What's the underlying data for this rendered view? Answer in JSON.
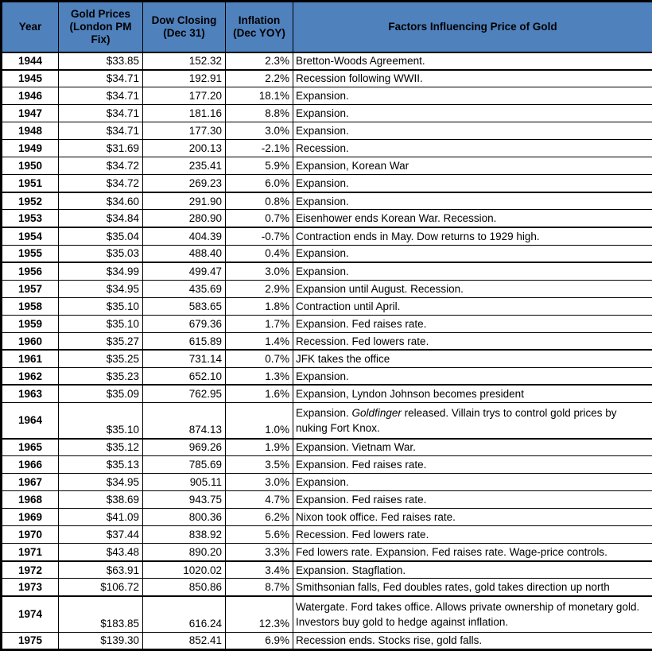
{
  "style": {
    "header_bg": "#4f81bd",
    "header_text_color": "#000000",
    "border_color": "#000000",
    "body_bg": "#ffffff",
    "thick_top_rows": [
      "1945",
      "1952",
      "1954",
      "1956",
      "1961",
      "1963",
      "1965",
      "1972",
      "1974"
    ]
  },
  "chart_data": {
    "type": "table",
    "title": "",
    "columns": [
      "Year",
      "Gold Prices (London PM Fix)",
      "Dow Closing (Dec 31)",
      "Inflation (Dec YOY)",
      "Factors Influencing Price of Gold"
    ],
    "rows": [
      {
        "year": "1944",
        "gold_price": "$33.85",
        "dow_close": "152.32",
        "inflation": "2.3%",
        "factors": "Bretton-Woods Agreement."
      },
      {
        "year": "1945",
        "gold_price": "$34.71",
        "dow_close": "192.91",
        "inflation": "2.2%",
        "factors": "Recession following WWII."
      },
      {
        "year": "1946",
        "gold_price": "$34.71",
        "dow_close": "177.20",
        "inflation": "18.1%",
        "factors": "Expansion."
      },
      {
        "year": "1947",
        "gold_price": "$34.71",
        "dow_close": "181.16",
        "inflation": "8.8%",
        "factors": "Expansion."
      },
      {
        "year": "1948",
        "gold_price": "$34.71",
        "dow_close": "177.30",
        "inflation": "3.0%",
        "factors": "Expansion."
      },
      {
        "year": "1949",
        "gold_price": "$31.69",
        "dow_close": "200.13",
        "inflation": "-2.1%",
        "factors": "Recession."
      },
      {
        "year": "1950",
        "gold_price": "$34.72",
        "dow_close": "235.41",
        "inflation": "5.9%",
        "factors": "Expansion, Korean War"
      },
      {
        "year": "1951",
        "gold_price": "$34.72",
        "dow_close": "269.23",
        "inflation": "6.0%",
        "factors": "Expansion."
      },
      {
        "year": "1952",
        "gold_price": "$34.60",
        "dow_close": "291.90",
        "inflation": "0.8%",
        "factors": "Expansion."
      },
      {
        "year": "1953",
        "gold_price": "$34.84",
        "dow_close": "280.90",
        "inflation": "0.7%",
        "factors": "Eisenhower ends Korean War. Recession."
      },
      {
        "year": "1954",
        "gold_price": "$35.04",
        "dow_close": "404.39",
        "inflation": "-0.7%",
        "factors": "Contraction ends in May. Dow returns to 1929 high."
      },
      {
        "year": "1955",
        "gold_price": "$35.03",
        "dow_close": "488.40",
        "inflation": "0.4%",
        "factors": "Expansion."
      },
      {
        "year": "1956",
        "gold_price": "$34.99",
        "dow_close": "499.47",
        "inflation": "3.0%",
        "factors": "Expansion."
      },
      {
        "year": "1957",
        "gold_price": "$34.95",
        "dow_close": "435.69",
        "inflation": "2.9%",
        "factors": "Expansion until August. Recession."
      },
      {
        "year": "1958",
        "gold_price": "$35.10",
        "dow_close": "583.65",
        "inflation": "1.8%",
        "factors": "Contraction until April."
      },
      {
        "year": "1959",
        "gold_price": "$35.10",
        "dow_close": "679.36",
        "inflation": "1.7%",
        "factors": "Expansion. Fed raises rate."
      },
      {
        "year": "1960",
        "gold_price": "$35.27",
        "dow_close": "615.89",
        "inflation": "1.4%",
        "factors": "Recession. Fed lowers rate."
      },
      {
        "year": "1961",
        "gold_price": "$35.25",
        "dow_close": "731.14",
        "inflation": "0.7%",
        "factors": "JFK takes the office"
      },
      {
        "year": "1962",
        "gold_price": "$35.23",
        "dow_close": "652.10",
        "inflation": "1.3%",
        "factors": "Expansion."
      },
      {
        "year": "1963",
        "gold_price": "$35.09",
        "dow_close": "762.95",
        "inflation": "1.6%",
        "factors": "Expansion, Lyndon Johnson becomes president"
      },
      {
        "year": "1964",
        "gold_price": "$35.10",
        "dow_close": "874.13",
        "inflation": "1.0%",
        "tall": true,
        "factors": "Expansion. Goldfinger released. Villain trys to control gold prices by nuking Fort Knox.",
        "factors_parts": [
          {
            "t": "Expansion. "
          },
          {
            "t": "Goldfinger",
            "i": true
          },
          {
            "t": " released. Villain trys to control gold prices by nuking Fort Knox."
          }
        ]
      },
      {
        "year": "1965",
        "gold_price": "$35.12",
        "dow_close": "969.26",
        "inflation": "1.9%",
        "factors": "Expansion. Vietnam War."
      },
      {
        "year": "1966",
        "gold_price": "$35.13",
        "dow_close": "785.69",
        "inflation": "3.5%",
        "factors": "Expansion. Fed raises rate."
      },
      {
        "year": "1967",
        "gold_price": "$34.95",
        "dow_close": "905.11",
        "inflation": "3.0%",
        "factors": "Expansion."
      },
      {
        "year": "1968",
        "gold_price": "$38.69",
        "dow_close": "943.75",
        "inflation": "4.7%",
        "factors": "Expansion. Fed raises rate."
      },
      {
        "year": "1969",
        "gold_price": "$41.09",
        "dow_close": "800.36",
        "inflation": "6.2%",
        "factors": "Nixon took office. Fed raises rate."
      },
      {
        "year": "1970",
        "gold_price": "$37.44",
        "dow_close": "838.92",
        "inflation": "5.6%",
        "factors": "Recession. Fed lowers rate."
      },
      {
        "year": "1971",
        "gold_price": "$43.48",
        "dow_close": "890.20",
        "inflation": "3.3%",
        "factors": "Fed lowers rate. Expansion. Fed raises rate. Wage-price controls."
      },
      {
        "year": "1972",
        "gold_price": "$63.91",
        "dow_close": "1020.02",
        "inflation": "3.4%",
        "factors": "Expansion. Stagflation."
      },
      {
        "year": "1973",
        "gold_price": "$106.72",
        "dow_close": "850.86",
        "inflation": "8.7%",
        "factors": "Smithsonian falls, Fed doubles rates, gold takes direction up north"
      },
      {
        "year": "1974",
        "gold_price": "$183.85",
        "dow_close": "616.24",
        "inflation": "12.3%",
        "tall": true,
        "factors": "Watergate. Ford takes office. Allows private ownership of monetary gold. Investors buy gold to hedge against inflation."
      },
      {
        "year": "1975",
        "gold_price": "$139.30",
        "dow_close": "852.41",
        "inflation": "6.9%",
        "factors": "Recession ends. Stocks rise, gold falls."
      }
    ]
  }
}
